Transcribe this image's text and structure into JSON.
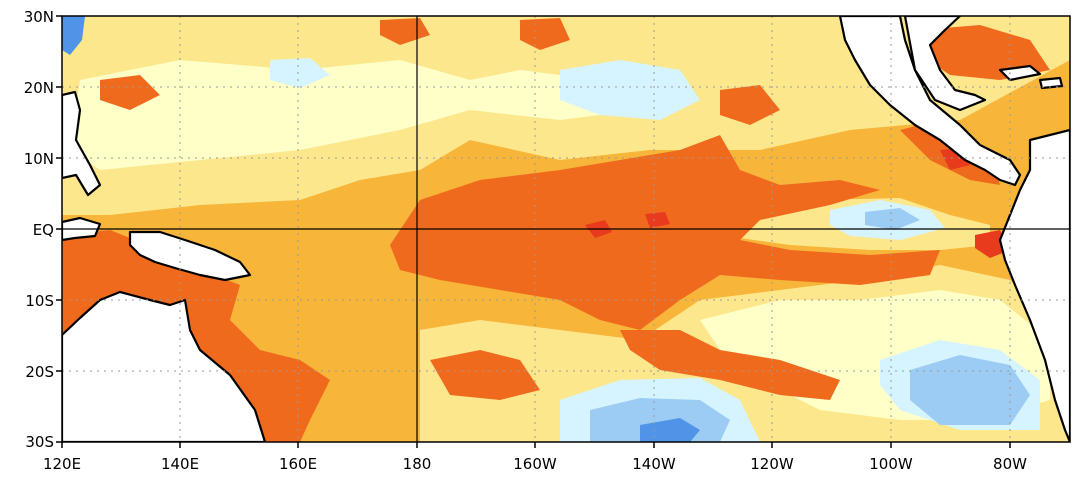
{
  "map": {
    "type": "sea surface temperature anomaly map",
    "region": "tropical Pacific",
    "lat_range": [
      -30,
      30
    ],
    "lon_range": [
      120,
      290
    ],
    "lat_ticks": [
      {
        "lat": 30,
        "label": "30N"
      },
      {
        "lat": 20,
        "label": "20N"
      },
      {
        "lat": 10,
        "label": "10N"
      },
      {
        "lat": 0,
        "label": "EQ"
      },
      {
        "lat": -10,
        "label": "10S"
      },
      {
        "lat": -20,
        "label": "20S"
      },
      {
        "lat": -30,
        "label": "30S"
      }
    ],
    "lon_ticks": [
      {
        "lon": 120,
        "label": "120E"
      },
      {
        "lon": 140,
        "label": "140E"
      },
      {
        "lon": 160,
        "label": "160E"
      },
      {
        "lon": 180,
        "label": "180"
      },
      {
        "lon": 200,
        "label": "160W"
      },
      {
        "lon": 220,
        "label": "140W"
      },
      {
        "lon": 240,
        "label": "120W"
      },
      {
        "lon": 260,
        "label": "100W"
      },
      {
        "lon": 280,
        "label": "80W"
      }
    ],
    "solid_lines": {
      "lat": 0,
      "lon": 180
    },
    "colors": {
      "strong_positive": "#e83a1c",
      "positive": "#f06a1e",
      "mild_positive": "#f7b53a",
      "weak_positive": "#fde78c",
      "near_zero": "#ffffc8",
      "weak_negative": "#d6f4ff",
      "negative": "#9ccbf3",
      "strong_negative": "#4f94e6",
      "land": "#ffffff",
      "coast": "#000000"
    }
  }
}
